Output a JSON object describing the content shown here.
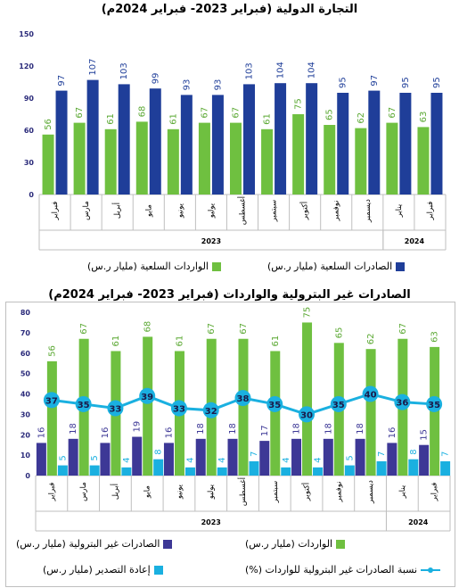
{
  "chart_data": [
    {
      "type": "bar",
      "title": "التجارة الدولية (فبراير 2023- فبراير 2024م)",
      "categories": [
        "فبراير",
        "مارس",
        "أبريل",
        "مايو",
        "يونيو",
        "يوليو",
        "أغسطس",
        "سبتمبر",
        "أكتوبر",
        "نوفمبر",
        "ديسمبر",
        "يناير",
        "فبراير"
      ],
      "year_labels": [
        {
          "label": "2023",
          "from": 0,
          "to": 10
        },
        {
          "label": "2024",
          "from": 11,
          "to": 12
        }
      ],
      "ylim": [
        0,
        150
      ],
      "yticks": [
        0,
        30,
        60,
        90,
        120,
        150
      ],
      "grid": false,
      "legend": "bottom",
      "series": [
        {
          "name": "الواردات السلعية (مليار ر.س)",
          "color": "#6fc040",
          "label_color": "#5aa832",
          "values": [
            56,
            67,
            61,
            68,
            61,
            67,
            67,
            61,
            75,
            65,
            62,
            67,
            63
          ]
        },
        {
          "name": "الصادرات السلعية (مليار ر.س)",
          "color": "#1f3e99",
          "label_color": "#1f3e99",
          "values": [
            97,
            107,
            103,
            99,
            93,
            93,
            103,
            104,
            104,
            95,
            97,
            95,
            95
          ]
        }
      ]
    },
    {
      "type": "bar",
      "title": "الصادرات غير البترولية والواردات (فبراير 2023- فبراير 2024م)",
      "categories": [
        "فبراير",
        "مارس",
        "أبريل",
        "مايو",
        "يونيو",
        "يوليو",
        "أغسطس",
        "سبتمبر",
        "أكتوبر",
        "نوفمبر",
        "ديسمبر",
        "يناير",
        "فبراير"
      ],
      "year_labels": [
        {
          "label": "2023",
          "from": 0,
          "to": 10
        },
        {
          "label": "2024",
          "from": 11,
          "to": 12
        }
      ],
      "ylim": [
        0,
        80
      ],
      "yticks": [
        0,
        10,
        20,
        30,
        40,
        50,
        60,
        70,
        80
      ],
      "grid": false,
      "legend": "bottom",
      "series": [
        {
          "name": "الصادرات غير البترولية (مليار ر.س)",
          "type": "bar",
          "color": "#3d3896",
          "label_color": "#3d3896",
          "values": [
            16,
            18,
            16,
            19,
            16,
            18,
            18,
            17,
            18,
            18,
            18,
            16,
            15
          ]
        },
        {
          "name": "الواردات (مليار ر.س)",
          "type": "bar",
          "color": "#6fc040",
          "label_color": "#5aa832",
          "values": [
            56,
            67,
            61,
            68,
            61,
            67,
            67,
            61,
            75,
            65,
            62,
            67,
            63
          ]
        },
        {
          "name": "إعادة التصدير (مليار ر.س)",
          "type": "bar",
          "color": "#1ab0e0",
          "label_color": "#1ab0e0",
          "values": [
            5,
            5,
            4,
            8,
            4,
            4,
            7,
            4,
            4,
            5,
            7,
            8,
            7
          ]
        },
        {
          "name": "نسبة الصادرات غير البترولية للواردات (%)",
          "type": "line",
          "color": "#1ab0e0",
          "label_color": "#1a1a4a",
          "values": [
            37,
            35,
            33,
            39,
            33,
            32,
            38,
            35,
            30,
            35,
            40,
            36,
            35
          ]
        }
      ]
    }
  ]
}
